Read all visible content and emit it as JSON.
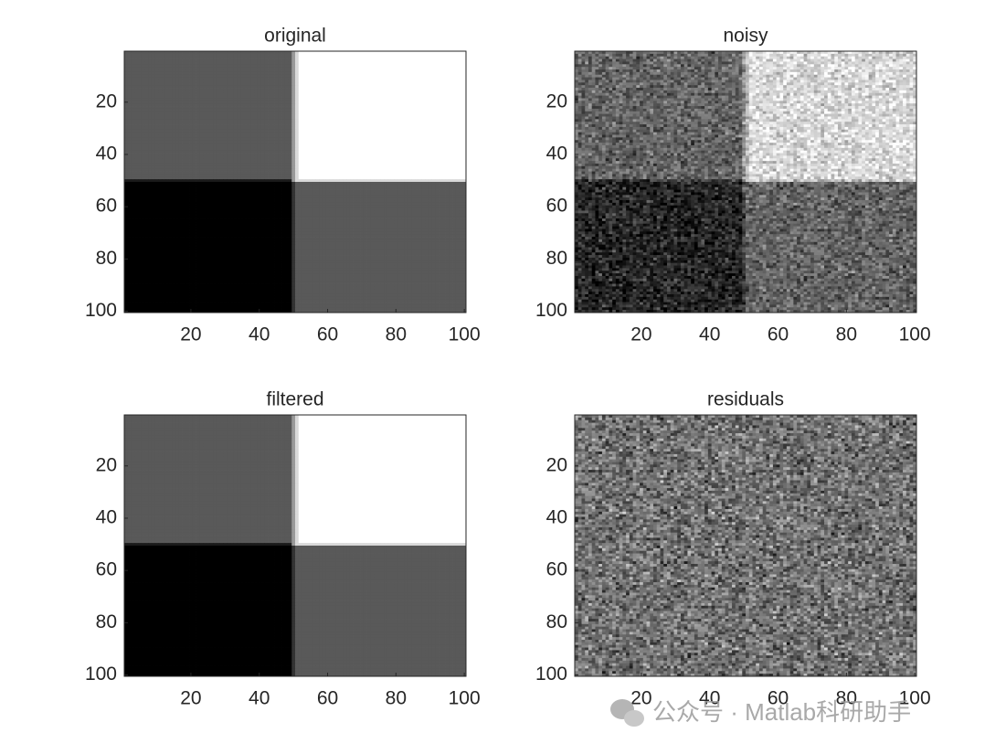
{
  "chart_data": [
    {
      "type": "image",
      "title": "original",
      "colormap": "gray",
      "y_reversed": true,
      "xlim": [
        0.5,
        100.5
      ],
      "ylim": [
        0.5,
        100.5
      ],
      "xticks": [
        20,
        40,
        60,
        80,
        100
      ],
      "yticks": [
        20,
        40,
        60,
        80,
        100
      ]
    },
    {
      "type": "image",
      "title": "noisy",
      "colormap": "gray",
      "y_reversed": true,
      "xlim": [
        0.5,
        100.5
      ],
      "ylim": [
        0.5,
        100.5
      ],
      "xticks": [
        20,
        40,
        60,
        80,
        100
      ],
      "yticks": [
        20,
        40,
        60,
        80,
        100
      ]
    },
    {
      "type": "image",
      "title": "filtered",
      "colormap": "gray",
      "y_reversed": true,
      "xlim": [
        0.5,
        100.5
      ],
      "ylim": [
        0.5,
        100.5
      ],
      "xticks": [
        20,
        40,
        60,
        80,
        100
      ],
      "yticks": [
        20,
        40,
        60,
        80,
        100
      ]
    },
    {
      "type": "image",
      "title": "residuals",
      "colormap": "gray",
      "y_reversed": true,
      "xlim": [
        0.5,
        100.5
      ],
      "ylim": [
        0.5,
        100.5
      ],
      "xticks": [
        20,
        40,
        60,
        80,
        100
      ],
      "yticks": [
        20,
        40,
        60,
        80,
        100
      ]
    }
  ],
  "watermark": "公众号 · Matlab科研助手"
}
